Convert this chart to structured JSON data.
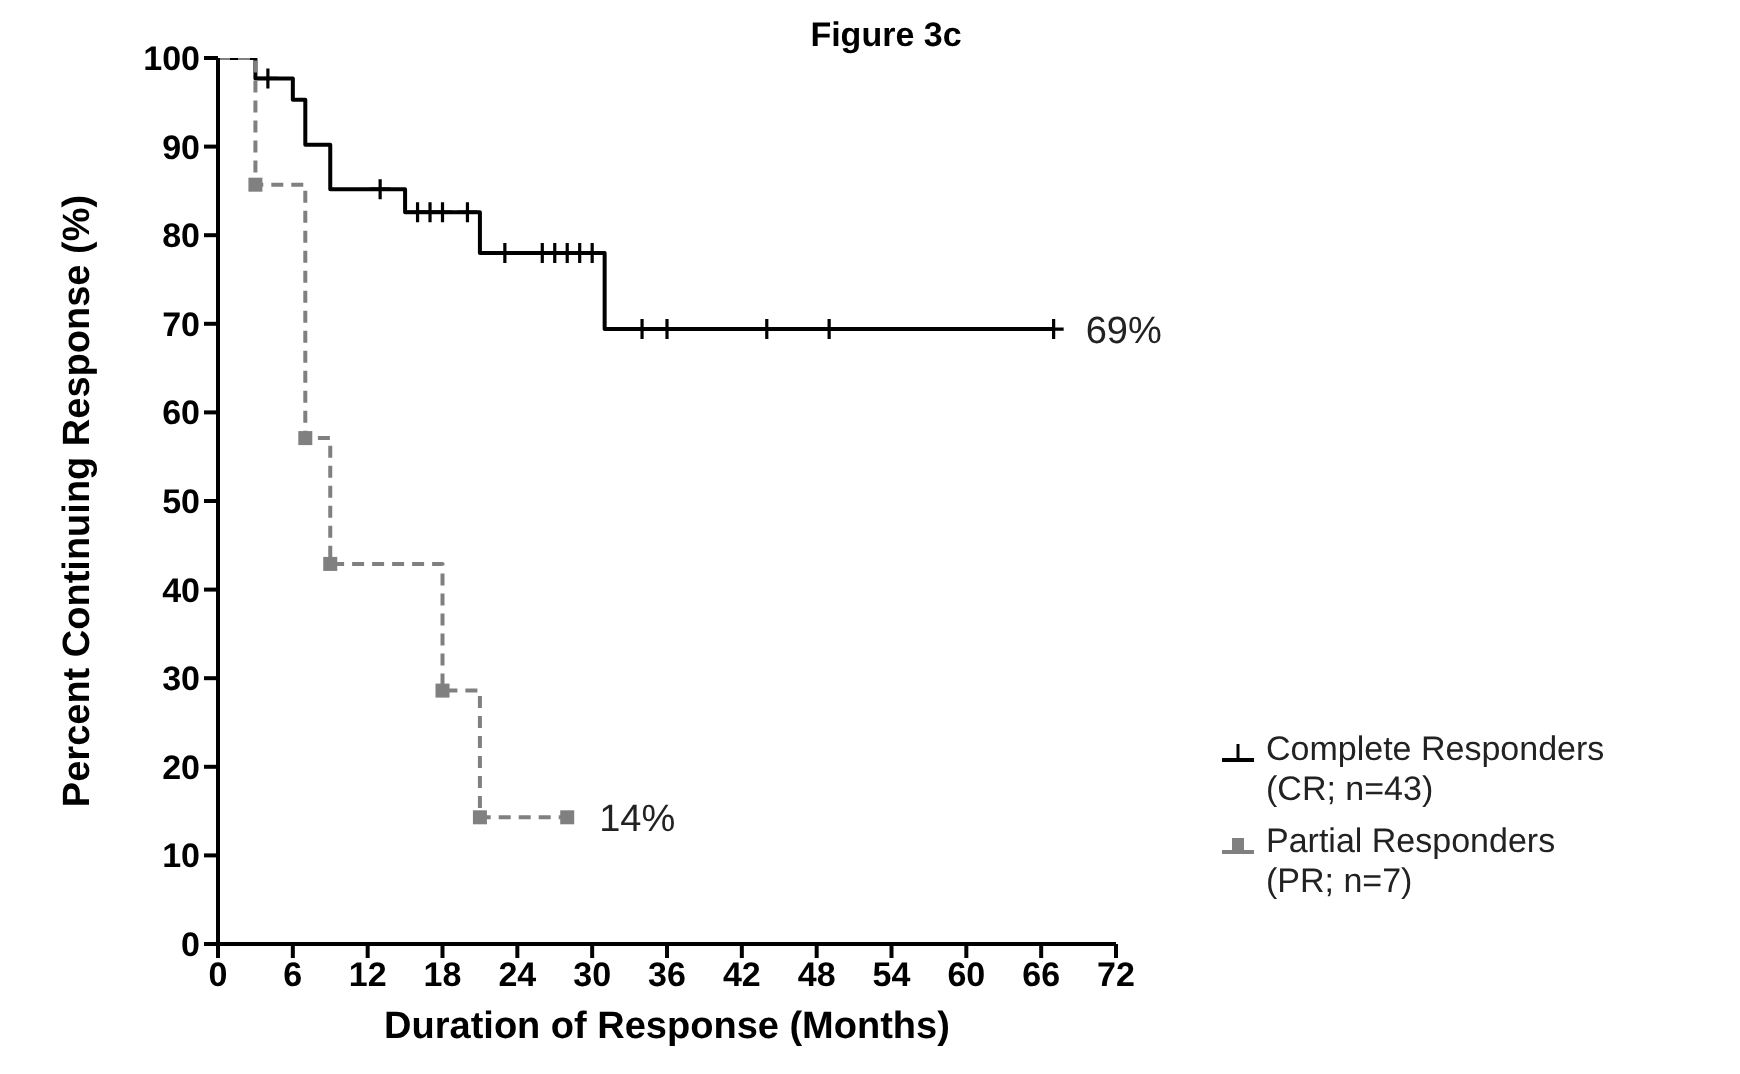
{
  "chart_data": {
    "type": "step",
    "title": "Figure 3c",
    "xlabel": "Duration of Response (Months)",
    "ylabel": "Percent Continuing Response (%)",
    "xlim": [
      0,
      72
    ],
    "xticks": [
      0,
      6,
      12,
      18,
      24,
      30,
      36,
      42,
      48,
      54,
      60,
      66,
      72
    ],
    "ylim": [
      0,
      100
    ],
    "yticks": [
      0,
      10,
      20,
      30,
      40,
      50,
      60,
      70,
      80,
      90,
      100
    ],
    "legend": "bottom right",
    "series": [
      {
        "name": "Complete Responders (CR; n=43)",
        "color": "#000000",
        "line_style": "solid",
        "marker": "none",
        "x": [
          0,
          3,
          6,
          7,
          9,
          15,
          21,
          31,
          67
        ],
        "values": [
          100,
          97.7,
          95.3,
          90.2,
          85.2,
          82.6,
          78,
          69.4,
          69.4
        ]
      },
      {
        "type": "scatter",
        "color": "#000000",
        "marker": "cross",
        "x": [
          4,
          13,
          16,
          17,
          18,
          20,
          23,
          26,
          27,
          28,
          29,
          30,
          34,
          36,
          44,
          49,
          67
        ],
        "values": [
          97.7,
          85.2,
          82.6,
          82.6,
          82.6,
          82.6,
          78,
          78,
          78,
          78,
          78,
          78,
          69.4,
          69.4,
          69.4,
          69.4,
          69.4
        ]
      },
      {
        "name": "Partial Responders (PR; n=7)",
        "color": "#808080",
        "line_style": "dashed",
        "marker": "none",
        "x": [
          0,
          3,
          7,
          9,
          18,
          21,
          28
        ],
        "values": [
          100,
          85.7,
          57.1,
          42.9,
          28.6,
          14.3,
          14.3
        ]
      },
      {
        "type": "scatter",
        "color": "#808080",
        "marker": "square",
        "x": [
          3,
          7,
          9,
          18,
          21,
          28
        ],
        "values": [
          85.7,
          57.1,
          42.9,
          28.6,
          14.3,
          14.3
        ]
      }
    ],
    "annotations": [
      {
        "text": "69%",
        "x": 67,
        "y": 69.4
      },
      {
        "text": "14%",
        "x": 28,
        "y": 14.3
      }
    ]
  }
}
